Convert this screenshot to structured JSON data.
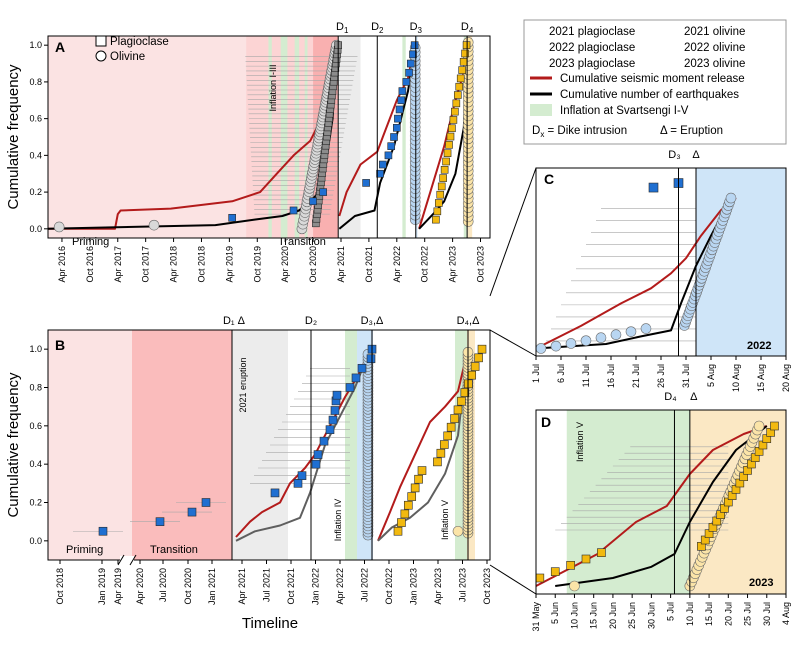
{
  "colors": {
    "plag2021": "#8c8c8c",
    "plag2022": "#1f6fd1",
    "plag2023": "#f2b90f",
    "oliv2021": "#d9d9d9",
    "oliv2022": "#b9d6f2",
    "oliv2023": "#fbe4a8",
    "moment": "#b31b1b",
    "quakes": "#000000",
    "inflation": "#d4ecd0",
    "priming": "#fbe3e3",
    "transition": "#f9b0b0",
    "eruption2021": "#ececec",
    "eruption2022": "#cfe5f8",
    "eruption2023": "#fbe8c4"
  },
  "legend": {
    "items": [
      {
        "label": "2021 plagioclase",
        "marker": "square",
        "color": "#8c8c8c"
      },
      {
        "label": "2021 olivine",
        "marker": "circle",
        "color": "#d9d9d9"
      },
      {
        "label": "2022 plagioclase",
        "marker": "square",
        "color": "#1f6fd1"
      },
      {
        "label": "2022 olivine",
        "marker": "circle",
        "color": "#b9d6f2"
      },
      {
        "label": "2023 plagioclase",
        "marker": "square",
        "color": "#f2b90f"
      },
      {
        "label": "2023 olivine",
        "marker": "circle",
        "color": "#fbe4a8"
      }
    ],
    "lines": [
      {
        "label": "Cumulative seismic moment release",
        "color": "#b31b1b"
      },
      {
        "label": "Cumulative number of earthquakes",
        "color": "#000000"
      },
      {
        "label": "Inflation at Svartsengi I-V",
        "color": "#d4ecd0"
      }
    ],
    "dike_prefix": "D",
    "dike_sub": "x",
    "dike_text": " = Dike intrusion",
    "eruption_text": "Δ = Eruption"
  },
  "chart_data": [
    {
      "id": "A",
      "type": "scatter",
      "panel_label": "A",
      "ylabel": "Cumulative frequency",
      "ylim": [
        -0.05,
        1.05
      ],
      "y_ticks": [
        "0.0",
        "0.2",
        "0.4",
        "0.6",
        "0.8",
        "1.0"
      ],
      "x_ticks": [
        "Apr 2016",
        "Oct 2016",
        "Apr 2017",
        "Oct 2017",
        "Apr 2018",
        "Oct 2018",
        "Apr 2019",
        "Oct 2019",
        "Apr 2020",
        "Oct 2020",
        "Apr 2021",
        "Oct 2021",
        "Apr 2022",
        "Oct 2022",
        "Apr 2023",
        "Oct 2023"
      ],
      "inset_legend": [
        {
          "label": "Plagioclase",
          "marker": "square"
        },
        {
          "label": "Olivine",
          "marker": "circle"
        }
      ],
      "annotations": {
        "priming": "Priming",
        "transition": "Transition",
        "inflation": "Inflation I-III"
      },
      "dikes": [
        {
          "label": "D",
          "sub": "1",
          "x": 2021.2
        },
        {
          "label": "D",
          "sub": "2",
          "x": 2021.9
        },
        {
          "label": "D",
          "sub": "3",
          "x": 2022.59
        },
        {
          "label": "D",
          "sub": "4",
          "x": 2023.51
        }
      ],
      "plag_2022": [
        {
          "x": 2019.3,
          "y": 0.06
        },
        {
          "x": 2020.4,
          "y": 0.1
        },
        {
          "x": 2020.75,
          "y": 0.15
        },
        {
          "x": 2020.93,
          "y": 0.2
        },
        {
          "x": 2021.7,
          "y": 0.25
        },
        {
          "x": 2021.95,
          "y": 0.3
        },
        {
          "x": 2022.0,
          "y": 0.35
        },
        {
          "x": 2022.1,
          "y": 0.4
        },
        {
          "x": 2022.15,
          "y": 0.45
        },
        {
          "x": 2022.2,
          "y": 0.5
        },
        {
          "x": 2022.25,
          "y": 0.55
        },
        {
          "x": 2022.27,
          "y": 0.6
        },
        {
          "x": 2022.3,
          "y": 0.65
        },
        {
          "x": 2022.33,
          "y": 0.7
        },
        {
          "x": 2022.35,
          "y": 0.75
        },
        {
          "x": 2022.42,
          "y": 0.8
        },
        {
          "x": 2022.47,
          "y": 0.85
        },
        {
          "x": 2022.5,
          "y": 0.9
        },
        {
          "x": 2022.54,
          "y": 0.95
        },
        {
          "x": 2022.57,
          "y": 1.0
        }
      ],
      "plag_2021_n": 40,
      "plag_2023_n": 22,
      "oliv_n": 60
    },
    {
      "id": "B",
      "type": "scatter",
      "panel_label": "B",
      "ylabel": "Cumulative frequency",
      "xlabel": "Timeline",
      "ylim": [
        -0.1,
        1.1
      ],
      "y_ticks": [
        "0.0",
        "0.2",
        "0.4",
        "0.6",
        "0.8",
        "1.0"
      ],
      "x_ticks_break": [
        "Oct 2018",
        "Jan 2019",
        "Apr 2019",
        "Apr 2020",
        "Jul 2020",
        "Oct 2020",
        "Jan 2021"
      ],
      "x_ticks_main": [
        "Apr 2021",
        "Jul 2021",
        "Oct 2021",
        "Jan 2022",
        "Apr 2022",
        "Jul 2022",
        "Oct 2022",
        "Jan 2023",
        "Apr 2023",
        "Jul 2023",
        "Oct 2023"
      ],
      "annotations": {
        "priming": "Priming",
        "transition": "Transition",
        "eruption2021": "2021 eruption",
        "inflation4": "Inflation IV",
        "inflation5": "Inflation V"
      },
      "dike_labels": [
        "D₁ Δ",
        "D₂",
        "D₃,Δ",
        "D₄,Δ"
      ],
      "plag_2022_break": [
        {
          "label": "Jan 2019",
          "y": 0.05
        },
        {
          "label": "Jun 2020",
          "y": 0.1
        },
        {
          "label": "Oct 2020",
          "y": 0.15
        },
        {
          "label": "Dec 2020",
          "y": 0.2
        }
      ]
    },
    {
      "id": "C",
      "type": "scatter",
      "panel_label": "C",
      "year_label": "2022",
      "x_ticks": [
        "1 Jul",
        "6 Jul",
        "11 Jul",
        "16 Jul",
        "21 Jul",
        "26 Jul",
        "31 Jul",
        "5 Aug",
        "10 Aug",
        "15 Aug",
        "20 Aug"
      ],
      "dike_label": "D₃",
      "eruption_label": "Δ",
      "plag_2022": [
        {
          "day": 24.5,
          "y": 1.07
        },
        {
          "day": 29.5,
          "y": 1.1
        }
      ],
      "oliv_n": 45
    },
    {
      "id": "D",
      "type": "scatter",
      "panel_label": "D",
      "year_label": "2023",
      "x_ticks": [
        "31 May",
        "5 Jun",
        "10 Jun",
        "15 Jun",
        "20 Jun",
        "25 Jun",
        "30 Jun",
        "5 Jul",
        "10 Jul",
        "15 Jul",
        "20 Jul",
        "25 Jul",
        "30 Jul",
        "4 Aug"
      ],
      "dike_label": "D₄",
      "eruption_label": "Δ",
      "annotation": "Inflation V",
      "plag_2023_n": 25,
      "oliv_n": 40
    }
  ]
}
